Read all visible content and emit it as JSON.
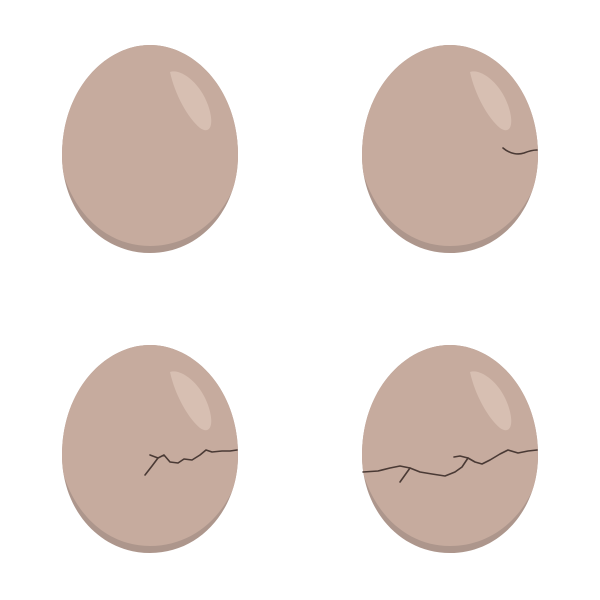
{
  "background_color": "#ffffff",
  "palette": {
    "shell": "#c6ab9e",
    "shadow": "#ad968c",
    "highlight": "#d7bfb2",
    "crack": "#4a3a35"
  },
  "eggs": [
    {
      "stage": "intact",
      "crack_level": 0
    },
    {
      "stage": "first-crack",
      "crack_level": 1
    },
    {
      "stage": "cracking",
      "crack_level": 2
    },
    {
      "stage": "heavily-cracked",
      "crack_level": 3
    }
  ]
}
